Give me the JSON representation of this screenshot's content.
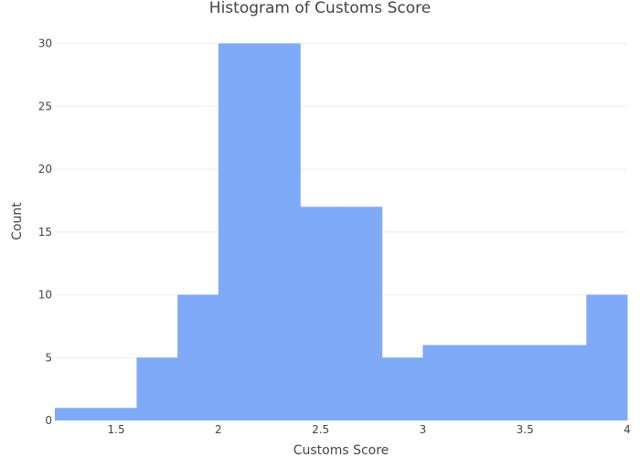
{
  "chart_data": {
    "type": "bar",
    "title": "Histogram of Customs Score",
    "xlabel": "Customs Score",
    "ylabel": "Count",
    "xlim": [
      1.2,
      4.0
    ],
    "ylim": [
      0,
      32
    ],
    "bar_color": "#7faaf8",
    "grid": true,
    "x_ticks": [
      "1.5",
      "2",
      "2.5",
      "3",
      "3.5",
      "4"
    ],
    "y_ticks": [
      "0",
      "5",
      "10",
      "15",
      "20",
      "25",
      "30"
    ],
    "bins": [
      {
        "x0": 1.2,
        "x1": 1.4,
        "count": 1
      },
      {
        "x0": 1.4,
        "x1": 1.6,
        "count": 1
      },
      {
        "x0": 1.6,
        "x1": 1.8,
        "count": 5
      },
      {
        "x0": 1.8,
        "x1": 2.0,
        "count": 10
      },
      {
        "x0": 2.0,
        "x1": 2.2,
        "count": 30
      },
      {
        "x0": 2.2,
        "x1": 2.4,
        "count": 30
      },
      {
        "x0": 2.4,
        "x1": 2.6,
        "count": 17
      },
      {
        "x0": 2.6,
        "x1": 2.8,
        "count": 17
      },
      {
        "x0": 2.8,
        "x1": 3.0,
        "count": 5
      },
      {
        "x0": 3.0,
        "x1": 3.2,
        "count": 6
      },
      {
        "x0": 3.2,
        "x1": 3.4,
        "count": 6
      },
      {
        "x0": 3.4,
        "x1": 3.6,
        "count": 6
      },
      {
        "x0": 3.6,
        "x1": 3.8,
        "count": 6
      },
      {
        "x0": 3.8,
        "x1": 4.0,
        "count": 10
      }
    ]
  }
}
